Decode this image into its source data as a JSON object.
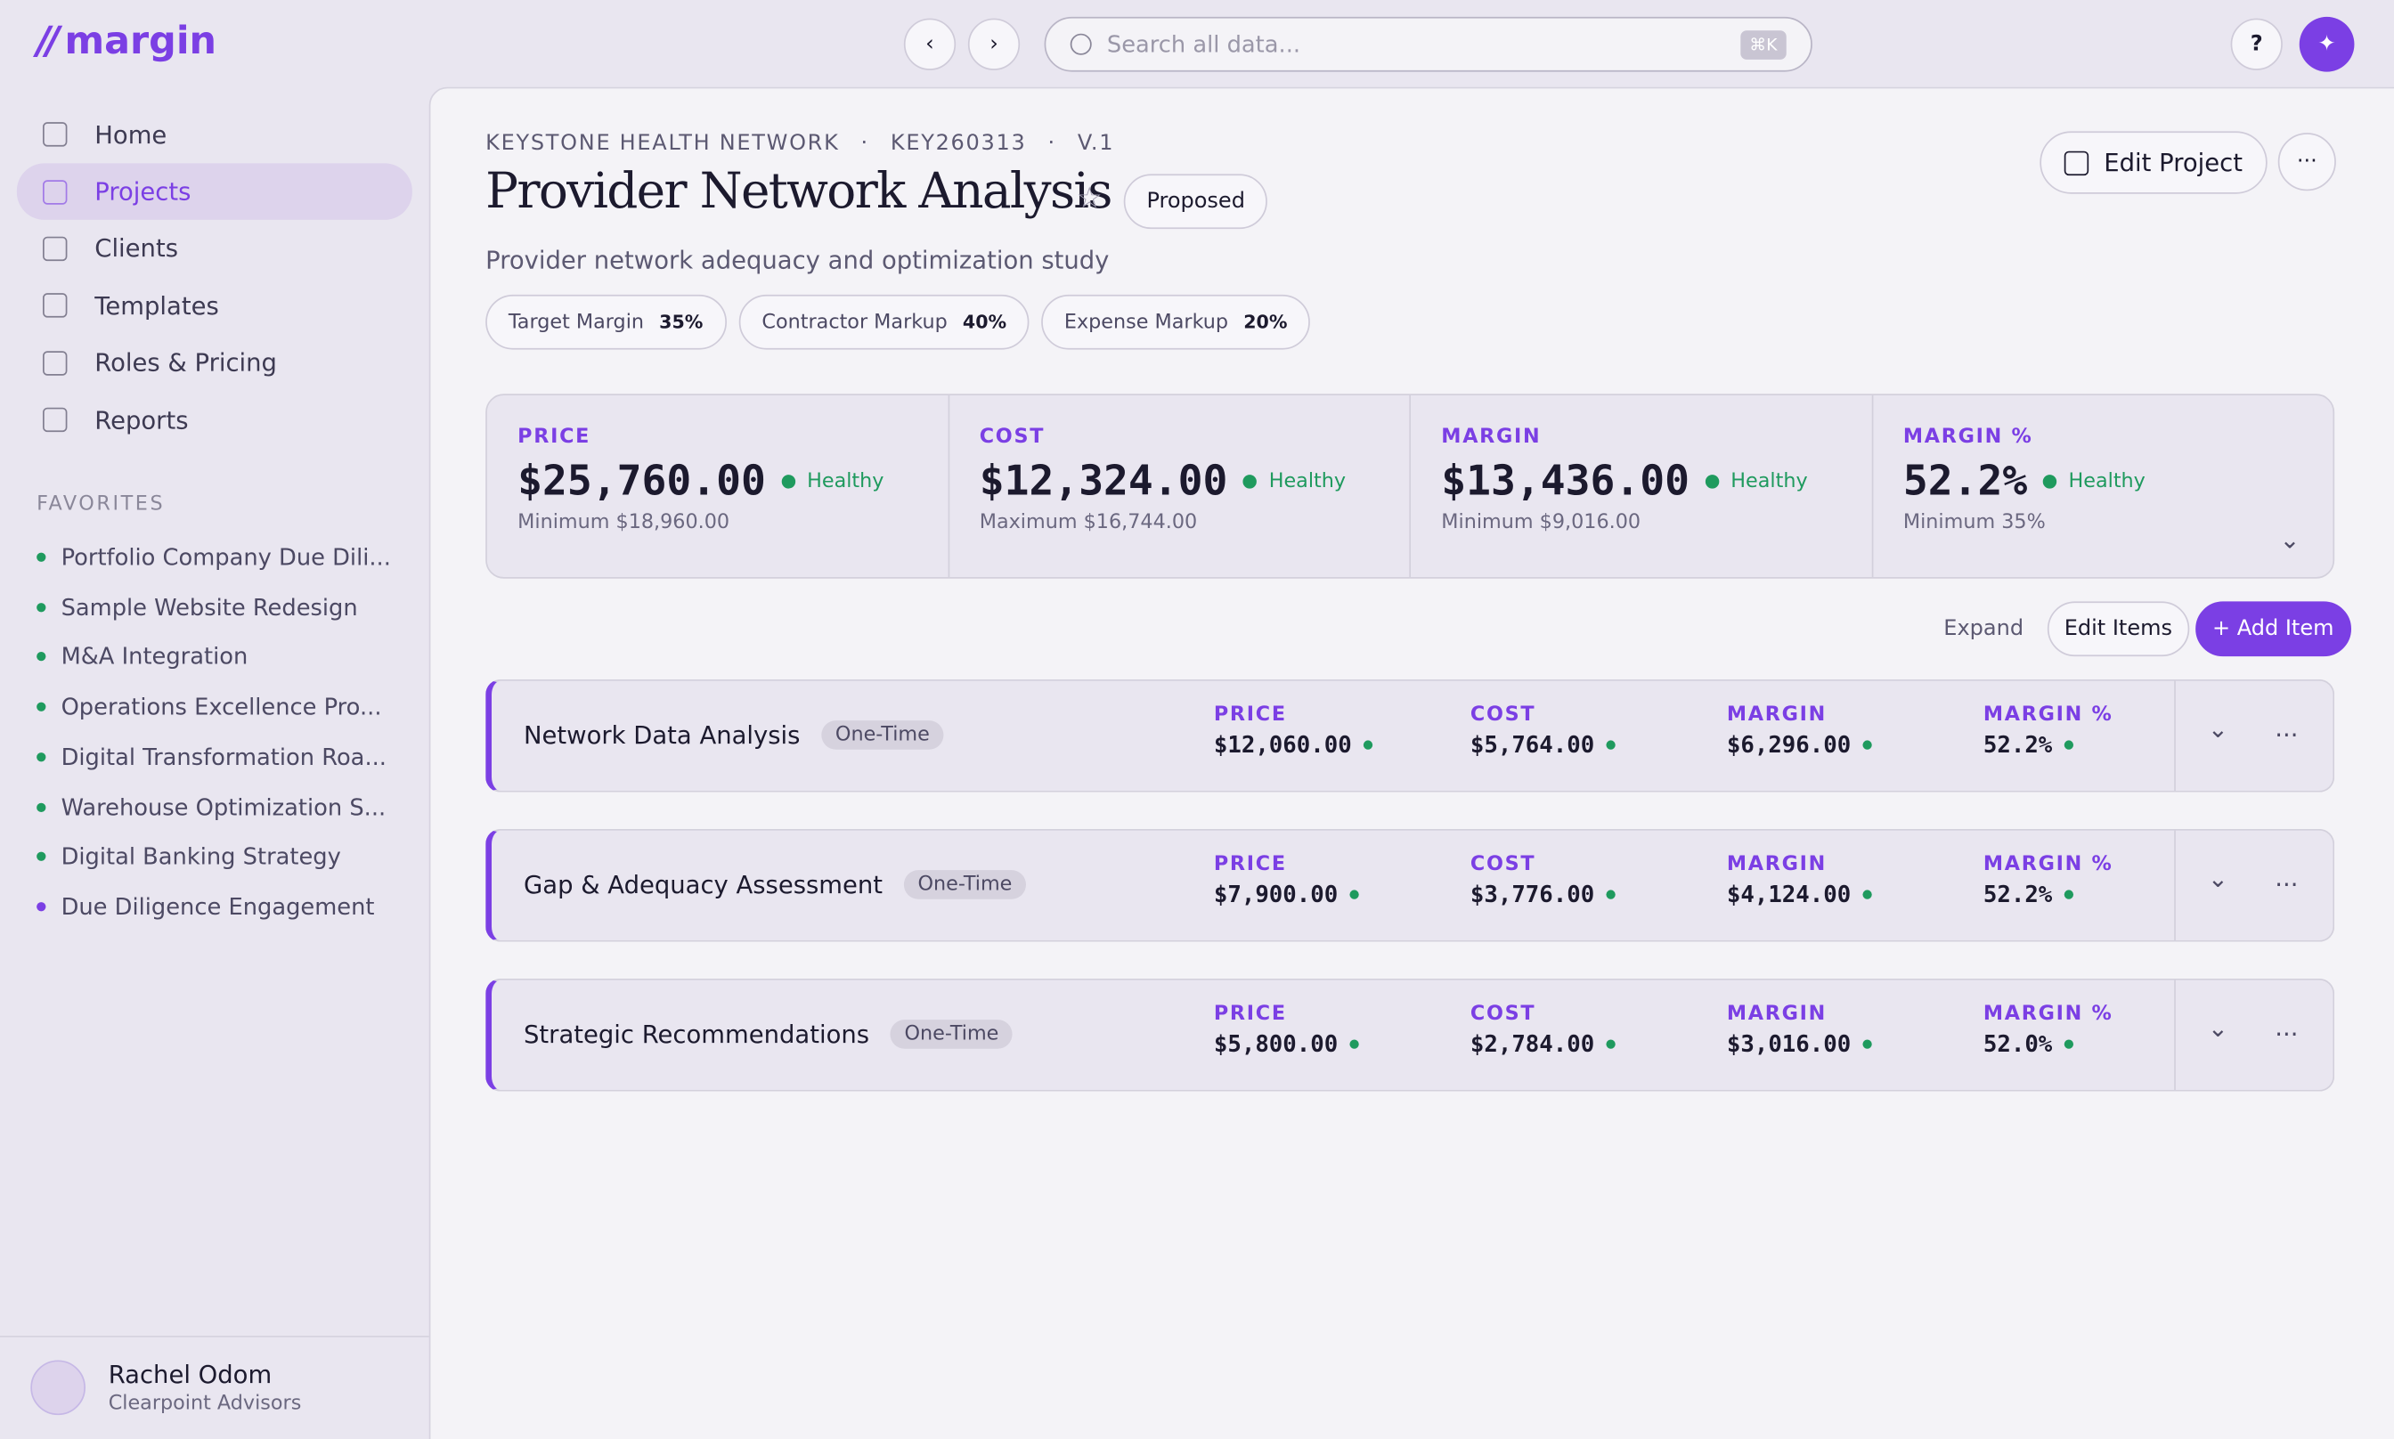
{
  "brand": "margin",
  "topbar": {
    "search_placeholder": "Search all data...",
    "shortcut": "⌘K",
    "help": "?"
  },
  "nav": [
    {
      "label": "Home"
    },
    {
      "label": "Projects",
      "active": true
    },
    {
      "label": "Clients"
    },
    {
      "label": "Templates"
    },
    {
      "label": "Roles & Pricing"
    },
    {
      "label": "Reports"
    }
  ],
  "favorites": {
    "title": "FAVORITES",
    "items": [
      "Portfolio Company Due Dili...",
      "Sample Website Redesign",
      "M&A Integration",
      "Operations Excellence Pro...",
      "Digital Transformation Roa...",
      "Warehouse Optimization S...",
      "Digital Banking Strategy",
      "Due Diligence Engagement"
    ]
  },
  "user": {
    "name": "Rachel Odom",
    "org": "Clearpoint Advisors"
  },
  "project": {
    "client": "KEYSTONE HEALTH NETWORK",
    "code": "KEY260313",
    "version": "V.1",
    "title": "Provider Network Analysis",
    "status": "Proposed",
    "description": "Provider network adequacy and optimization study",
    "edit": "Edit Project",
    "settings": [
      {
        "label": "Target Margin",
        "value": "35%"
      },
      {
        "label": "Contractor Markup",
        "value": "40%"
      },
      {
        "label": "Expense Markup",
        "value": "20%"
      }
    ]
  },
  "metrics": [
    {
      "label": "PRICE",
      "value": "$25,760.00",
      "status": "Healthy",
      "note": "Minimum $18,960.00"
    },
    {
      "label": "COST",
      "value": "$12,324.00",
      "status": "Healthy",
      "note": "Maximum $16,744.00"
    },
    {
      "label": "MARGIN",
      "value": "$13,436.00",
      "status": "Healthy",
      "note": "Minimum $9,016.00"
    },
    {
      "label": "MARGIN %",
      "value": "52.2%",
      "status": "Healthy",
      "note": "Minimum 35%"
    }
  ],
  "actions": {
    "expand": "Expand",
    "edit_items": "Edit Items",
    "add_item": "+ Add Item"
  },
  "items": [
    {
      "name": "Network Data Analysis",
      "tag": "One-Time",
      "metrics": [
        {
          "label": "PRICE",
          "value": "$12,060.00"
        },
        {
          "label": "COST",
          "value": "$5,764.00"
        },
        {
          "label": "MARGIN",
          "value": "$6,296.00"
        },
        {
          "label": "MARGIN %",
          "value": "52.2%"
        }
      ]
    },
    {
      "name": "Gap & Adequacy Assessment",
      "tag": "One-Time",
      "metrics": [
        {
          "label": "PRICE",
          "value": "$7,900.00"
        },
        {
          "label": "COST",
          "value": "$3,776.00"
        },
        {
          "label": "MARGIN",
          "value": "$4,124.00"
        },
        {
          "label": "MARGIN %",
          "value": "52.2%"
        }
      ]
    },
    {
      "name": "Strategic Recommendations",
      "tag": "One-Time",
      "metrics": [
        {
          "label": "PRICE",
          "value": "$5,800.00"
        },
        {
          "label": "COST",
          "value": "$2,784.00"
        },
        {
          "label": "MARGIN",
          "value": "$3,016.00"
        },
        {
          "label": "MARGIN %",
          "value": "52.0%"
        }
      ]
    }
  ]
}
